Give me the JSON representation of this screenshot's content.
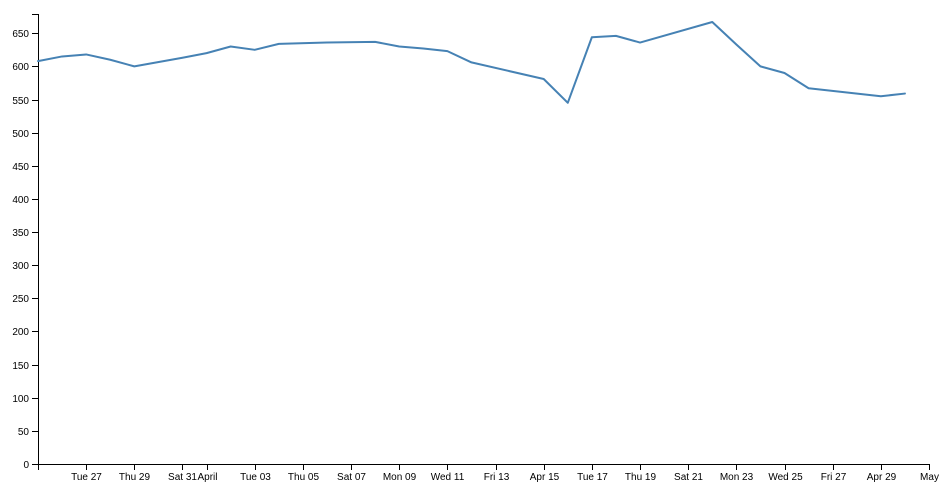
{
  "chart_data": {
    "type": "line",
    "title": "",
    "xlabel": "",
    "ylabel": "",
    "grid": false,
    "legend": "none",
    "line_color": "#4682b4",
    "x_range": [
      "2018-03-25",
      "2018-05-01"
    ],
    "ylim": [
      0,
      670
    ],
    "y_ticks": [
      0,
      50,
      100,
      150,
      200,
      250,
      300,
      350,
      400,
      450,
      500,
      550,
      600,
      650
    ],
    "x_ticks": [
      {
        "date": "2018-03-27",
        "label": "Tue 27"
      },
      {
        "date": "2018-03-29",
        "label": "Thu 29"
      },
      {
        "date": "2018-03-31",
        "label": "Sat 31"
      },
      {
        "date": "2018-04-01",
        "label": "April"
      },
      {
        "date": "2018-04-03",
        "label": "Tue 03"
      },
      {
        "date": "2018-04-05",
        "label": "Thu 05"
      },
      {
        "date": "2018-04-07",
        "label": "Sat 07"
      },
      {
        "date": "2018-04-09",
        "label": "Mon 09"
      },
      {
        "date": "2018-04-11",
        "label": "Wed 11"
      },
      {
        "date": "2018-04-13",
        "label": "Fri 13"
      },
      {
        "date": "2018-04-15",
        "label": "Apr 15"
      },
      {
        "date": "2018-04-17",
        "label": "Tue 17"
      },
      {
        "date": "2018-04-19",
        "label": "Thu 19"
      },
      {
        "date": "2018-04-21",
        "label": "Sat 21"
      },
      {
        "date": "2018-04-23",
        "label": "Mon 23"
      },
      {
        "date": "2018-04-25",
        "label": "Wed 25"
      },
      {
        "date": "2018-04-27",
        "label": "Fri 27"
      },
      {
        "date": "2018-04-29",
        "label": "Apr 29"
      },
      {
        "date": "2018-05-01",
        "label": "May"
      }
    ],
    "series": [
      {
        "points": [
          [
            "2018-03-25",
            608
          ],
          [
            "2018-03-26",
            615
          ],
          [
            "2018-03-27",
            618
          ],
          [
            "2018-03-28",
            610
          ],
          [
            "2018-03-29",
            600
          ],
          [
            "2018-03-31",
            613
          ],
          [
            "2018-04-01",
            620
          ],
          [
            "2018-04-02",
            630
          ],
          [
            "2018-04-03",
            625
          ],
          [
            "2018-04-04",
            634
          ],
          [
            "2018-04-06",
            636
          ],
          [
            "2018-04-08",
            637
          ],
          [
            "2018-04-09",
            630
          ],
          [
            "2018-04-10",
            627
          ],
          [
            "2018-04-11",
            623
          ],
          [
            "2018-04-12",
            606
          ],
          [
            "2018-04-15",
            581
          ],
          [
            "2018-04-16",
            545
          ],
          [
            "2018-04-17",
            644
          ],
          [
            "2018-04-18",
            646
          ],
          [
            "2018-04-19",
            636
          ],
          [
            "2018-04-22",
            667
          ],
          [
            "2018-04-23",
            633
          ],
          [
            "2018-04-24",
            600
          ],
          [
            "2018-04-25",
            590
          ],
          [
            "2018-04-26",
            567
          ],
          [
            "2018-04-29",
            555
          ],
          [
            "2018-04-30",
            559
          ]
        ]
      }
    ]
  }
}
